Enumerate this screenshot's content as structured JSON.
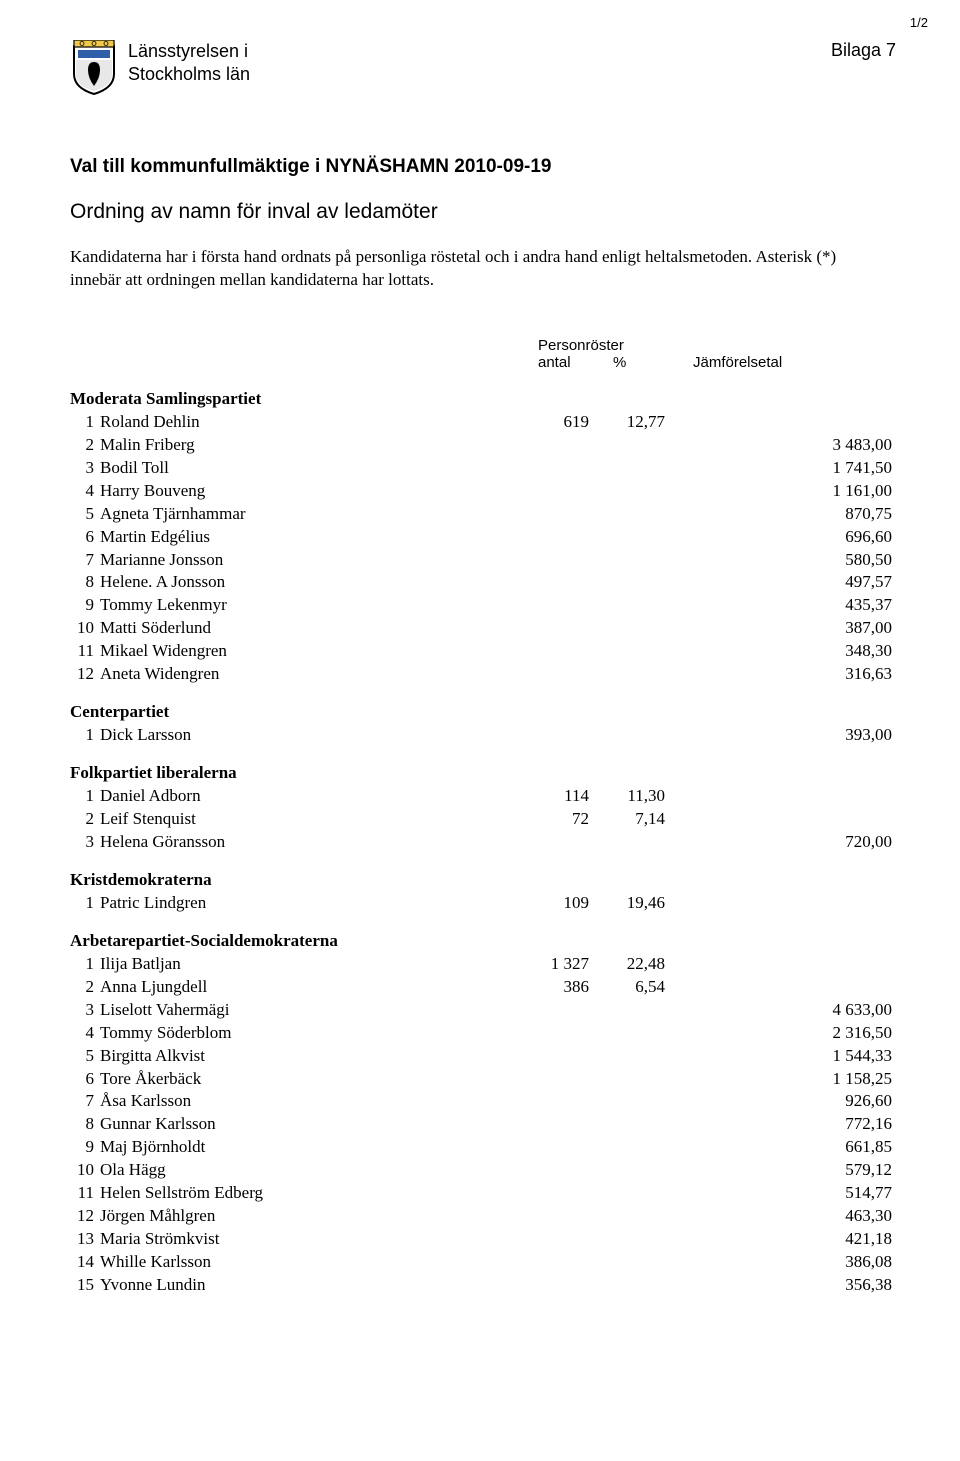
{
  "page_number": "1/2",
  "authority_line1": "Länsstyrelsen i",
  "authority_line2": "Stockholms län",
  "bilaga": "Bilaga 7",
  "title": "Val till kommunfullmäktige i NYNÄSHAMN 2010-09-19",
  "subtitle": "Ordning av namn för inval av ledamöter",
  "intro": "Kandidaterna har i första hand ordnats på personliga röstetal och i andra hand enligt heltalsmetoden. Asterisk (*) innebär att ordningen mellan kandidaterna har lottats.",
  "col_personroster": "Personröster",
  "col_antal": "antal",
  "col_pct": "%",
  "col_jmf": "Jämförelsetal",
  "parties": [
    {
      "name": "Moderata Samlingspartiet",
      "rows": [
        {
          "n": "1",
          "name": "Roland Dehlin",
          "antal": "619",
          "pct": "12,77",
          "jmf": ""
        },
        {
          "n": "2",
          "name": "Malin Friberg",
          "antal": "",
          "pct": "",
          "jmf": "3 483,00"
        },
        {
          "n": "3",
          "name": "Bodil Toll",
          "antal": "",
          "pct": "",
          "jmf": "1 741,50"
        },
        {
          "n": "4",
          "name": "Harry Bouveng",
          "antal": "",
          "pct": "",
          "jmf": "1 161,00"
        },
        {
          "n": "5",
          "name": "Agneta Tjärnhammar",
          "antal": "",
          "pct": "",
          "jmf": "870,75"
        },
        {
          "n": "6",
          "name": "Martin Edgélius",
          "antal": "",
          "pct": "",
          "jmf": "696,60"
        },
        {
          "n": "7",
          "name": "Marianne Jonsson",
          "antal": "",
          "pct": "",
          "jmf": "580,50"
        },
        {
          "n": "8",
          "name": "Helene. A Jonsson",
          "antal": "",
          "pct": "",
          "jmf": "497,57"
        },
        {
          "n": "9",
          "name": "Tommy Lekenmyr",
          "antal": "",
          "pct": "",
          "jmf": "435,37"
        },
        {
          "n": "10",
          "name": "Matti Söderlund",
          "antal": "",
          "pct": "",
          "jmf": "387,00"
        },
        {
          "n": "11",
          "name": "Mikael Widengren",
          "antal": "",
          "pct": "",
          "jmf": "348,30"
        },
        {
          "n": "12",
          "name": "Aneta Widengren",
          "antal": "",
          "pct": "",
          "jmf": "316,63"
        }
      ]
    },
    {
      "name": "Centerpartiet",
      "rows": [
        {
          "n": "1",
          "name": "Dick Larsson",
          "antal": "",
          "pct": "",
          "jmf": "393,00"
        }
      ]
    },
    {
      "name": "Folkpartiet liberalerna",
      "rows": [
        {
          "n": "1",
          "name": "Daniel Adborn",
          "antal": "114",
          "pct": "11,30",
          "jmf": ""
        },
        {
          "n": "2",
          "name": "Leif Stenquist",
          "antal": "72",
          "pct": "7,14",
          "jmf": ""
        },
        {
          "n": "3",
          "name": "Helena Göransson",
          "antal": "",
          "pct": "",
          "jmf": "720,00"
        }
      ]
    },
    {
      "name": "Kristdemokraterna",
      "rows": [
        {
          "n": "1",
          "name": "Patric Lindgren",
          "antal": "109",
          "pct": "19,46",
          "jmf": ""
        }
      ]
    },
    {
      "name": "Arbetarepartiet-Socialdemokraterna",
      "rows": [
        {
          "n": "1",
          "name": "Ilija Batljan",
          "antal": "1 327",
          "pct": "22,48",
          "jmf": ""
        },
        {
          "n": "2",
          "name": "Anna Ljungdell",
          "antal": "386",
          "pct": "6,54",
          "jmf": ""
        },
        {
          "n": "3",
          "name": "Liselott Vahermägi",
          "antal": "",
          "pct": "",
          "jmf": "4 633,00"
        },
        {
          "n": "4",
          "name": "Tommy Söderblom",
          "antal": "",
          "pct": "",
          "jmf": "2 316,50"
        },
        {
          "n": "5",
          "name": "Birgitta Alkvist",
          "antal": "",
          "pct": "",
          "jmf": "1 544,33"
        },
        {
          "n": "6",
          "name": "Tore Åkerbäck",
          "antal": "",
          "pct": "",
          "jmf": "1 158,25"
        },
        {
          "n": "7",
          "name": "Åsa Karlsson",
          "antal": "",
          "pct": "",
          "jmf": "926,60"
        },
        {
          "n": "8",
          "name": "Gunnar Karlsson",
          "antal": "",
          "pct": "",
          "jmf": "772,16"
        },
        {
          "n": "9",
          "name": "Maj Björnholdt",
          "antal": "",
          "pct": "",
          "jmf": "661,85"
        },
        {
          "n": "10",
          "name": "Ola Hägg",
          "antal": "",
          "pct": "",
          "jmf": "579,12"
        },
        {
          "n": "11",
          "name": "Helen Sellström Edberg",
          "antal": "",
          "pct": "",
          "jmf": "514,77"
        },
        {
          "n": "12",
          "name": "Jörgen Måhlgren",
          "antal": "",
          "pct": "",
          "jmf": "463,30"
        },
        {
          "n": "13",
          "name": "Maria Strömkvist",
          "antal": "",
          "pct": "",
          "jmf": "421,18"
        },
        {
          "n": "14",
          "name": "Whille Karlsson",
          "antal": "",
          "pct": "",
          "jmf": "386,08"
        },
        {
          "n": "15",
          "name": "Yvonne Lundin",
          "antal": "",
          "pct": "",
          "jmf": "356,38"
        }
      ]
    }
  ]
}
